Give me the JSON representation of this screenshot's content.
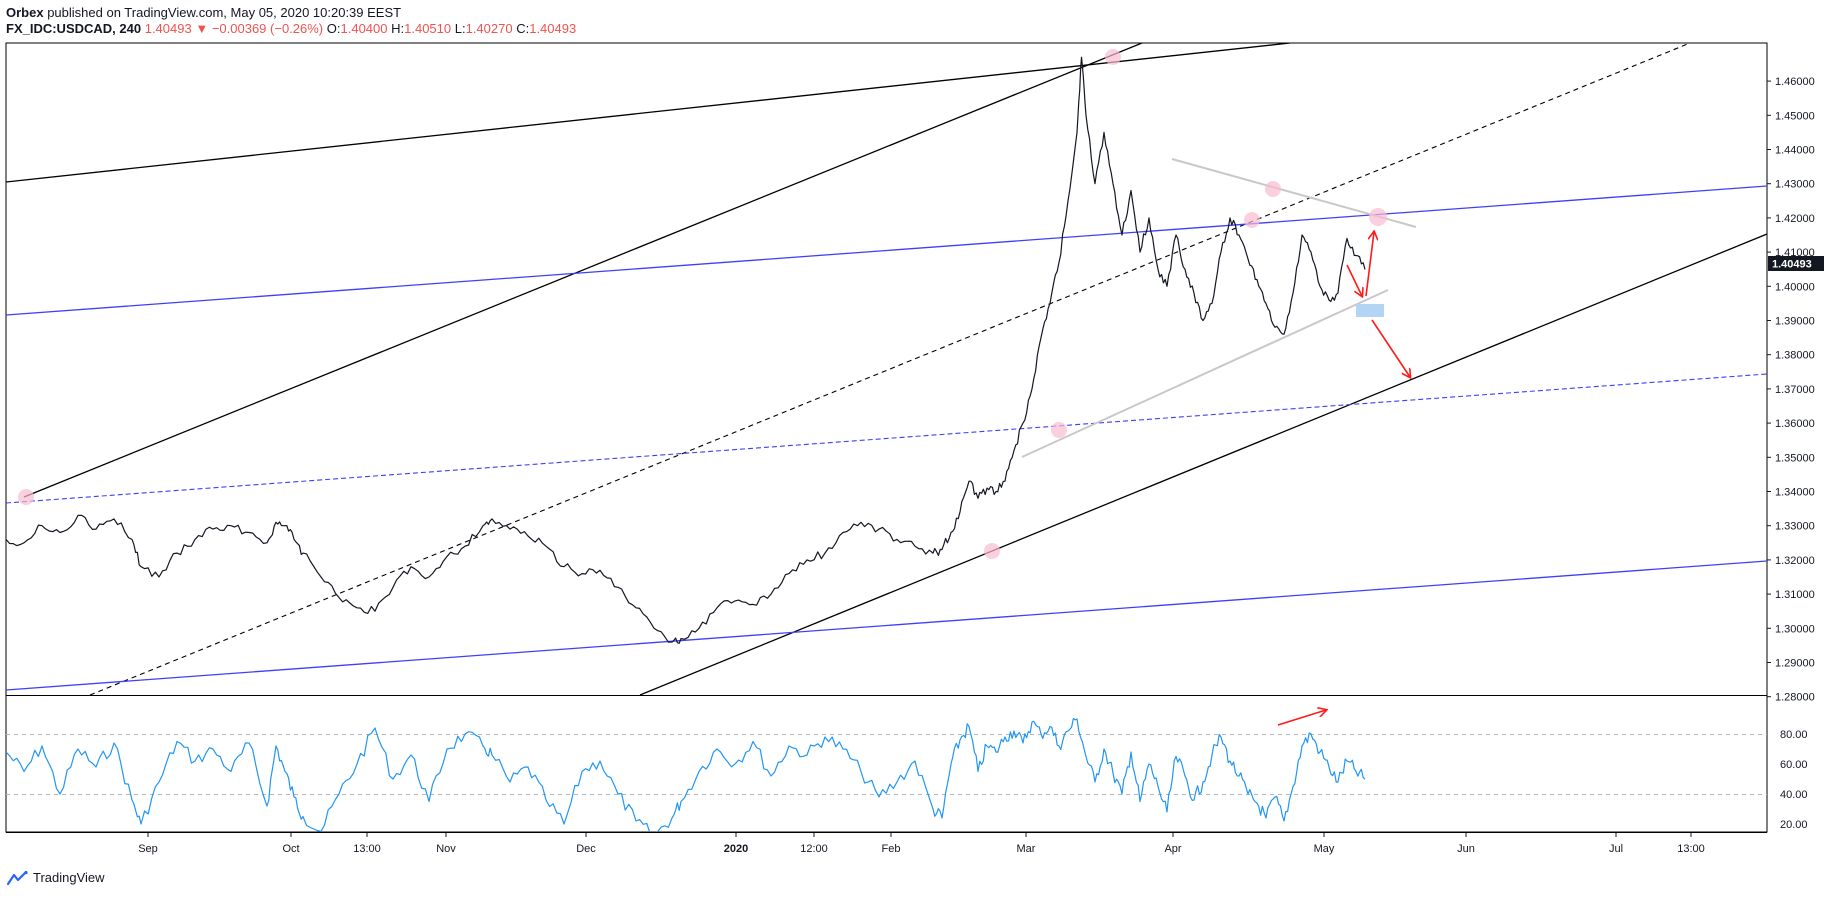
{
  "header": {
    "author": "Orbex",
    "published": "published on TradingView.com, May 05, 2020 10:20:39 EEST",
    "symbol": "FX_IDC:USDCAD, 240",
    "last": "1.40493",
    "change": "▼ −0.00369 (−0.26%)",
    "o_label": "O:",
    "o_value": "1.40400",
    "h_label": "H:",
    "h_value": "1.40510",
    "l_label": "L:",
    "l_value": "1.40270",
    "c_label": "C:",
    "c_value": "1.40493"
  },
  "footer": {
    "brand": "TradingView"
  },
  "colors": {
    "price": "#131722",
    "rsi": "#2196f3",
    "channel_blue": "#3f3ffb",
    "annotation_red": "#ff1a1a",
    "highlight_pink": "#f8bbd0",
    "highlight_box": "#b3d4f5",
    "triangle_grey": "#c8c8c8",
    "price_label_bg": "#131722"
  },
  "chart_data": [
    {
      "type": "line",
      "series": [
        {
          "values": [
            [
              0,
              1.326
            ],
            [
              4,
              1.325
            ],
            [
              8,
              1.33
            ],
            [
              12,
              1.328
            ],
            [
              16,
              1.333
            ],
            [
              20,
              1.329
            ],
            [
              24,
              1.332
            ],
            [
              28,
              1.326
            ],
            [
              30,
              1.318
            ],
            [
              34,
              1.315
            ],
            [
              38,
              1.322
            ],
            [
              42,
              1.326
            ],
            [
              46,
              1.329
            ],
            [
              50,
              1.33
            ],
            [
              54,
              1.328
            ],
            [
              58,
              1.325
            ],
            [
              60,
              1.331
            ],
            [
              62,
              1.33
            ],
            [
              64,
              1.326
            ],
            [
              66,
              1.322
            ],
            [
              70,
              1.315
            ],
            [
              74,
              1.309
            ],
            [
              78,
              1.306
            ],
            [
              82,
              1.305
            ],
            [
              86,
              1.312
            ],
            [
              90,
              1.318
            ],
            [
              94,
              1.315
            ],
            [
              98,
              1.321
            ],
            [
              102,
              1.324
            ],
            [
              106,
              1.33
            ],
            [
              108,
              1.332
            ],
            [
              112,
              1.329
            ],
            [
              116,
              1.327
            ],
            [
              120,
              1.324
            ],
            [
              124,
              1.318
            ],
            [
              128,
              1.316
            ],
            [
              132,
              1.317
            ],
            [
              136,
              1.312
            ],
            [
              140,
              1.306
            ],
            [
              144,
              1.3
            ],
            [
              148,
              1.296
            ],
            [
              150,
              1.297
            ],
            [
              154,
              1.3
            ],
            [
              158,
              1.306
            ],
            [
              162,
              1.308
            ],
            [
              166,
              1.307
            ],
            [
              170,
              1.31
            ],
            [
              174,
              1.316
            ],
            [
              178,
              1.32
            ],
            [
              182,
              1.322
            ],
            [
              186,
              1.328
            ],
            [
              190,
              1.331
            ],
            [
              194,
              1.329
            ],
            [
              198,
              1.326
            ],
            [
              202,
              1.324
            ],
            [
              206,
              1.322
            ],
            [
              208,
              1.323
            ],
            [
              210,
              1.328
            ],
            [
              212,
              1.334
            ],
            [
              214,
              1.343
            ],
            [
              216,
              1.338
            ],
            [
              218,
              1.341
            ],
            [
              220,
              1.34
            ],
            [
              222,
              1.343
            ],
            [
              224,
              1.352
            ],
            [
              226,
              1.36
            ],
            [
              228,
              1.37
            ],
            [
              230,
              1.385
            ],
            [
              232,
              1.395
            ],
            [
              234,
              1.407
            ],
            [
              236,
              1.425
            ],
            [
              238,
              1.445
            ],
            [
              239,
              1.467
            ],
            [
              240,
              1.45
            ],
            [
              242,
              1.43
            ],
            [
              244,
              1.445
            ],
            [
              246,
              1.43
            ],
            [
              248,
              1.415
            ],
            [
              250,
              1.428
            ],
            [
              252,
              1.41
            ],
            [
              254,
              1.42
            ],
            [
              256,
              1.405
            ],
            [
              258,
              1.4
            ],
            [
              260,
              1.415
            ],
            [
              262,
              1.405
            ],
            [
              264,
              1.398
            ],
            [
              266,
              1.39
            ],
            [
              268,
              1.395
            ],
            [
              270,
              1.41
            ],
            [
              272,
              1.42
            ],
            [
              274,
              1.415
            ],
            [
              276,
              1.408
            ],
            [
              278,
              1.402
            ],
            [
              280,
              1.395
            ],
            [
              282,
              1.388
            ],
            [
              284,
              1.386
            ],
            [
              286,
              1.398
            ],
            [
              288,
              1.415
            ],
            [
              290,
              1.41
            ],
            [
              292,
              1.4
            ],
            [
              294,
              1.396
            ],
            [
              296,
              1.398
            ],
            [
              298,
              1.414
            ],
            [
              300,
              1.409
            ],
            [
              302,
              1.4049
            ]
          ]
        }
      ]
    },
    {
      "type": "line",
      "series": [
        {
          "values": [
            [
              0,
              68
            ],
            [
              4,
              55
            ],
            [
              8,
              72
            ],
            [
              12,
              40
            ],
            [
              16,
              70
            ],
            [
              20,
              58
            ],
            [
              24,
              74
            ],
            [
              28,
              36
            ],
            [
              30,
              20
            ],
            [
              34,
              48
            ],
            [
              38,
              75
            ],
            [
              42,
              62
            ],
            [
              46,
              70
            ],
            [
              50,
              55
            ],
            [
              54,
              74
            ],
            [
              58,
              32
            ],
            [
              60,
              72
            ],
            [
              62,
              55
            ],
            [
              64,
              38
            ],
            [
              66,
              25
            ],
            [
              70,
              15
            ],
            [
              74,
              40
            ],
            [
              78,
              60
            ],
            [
              82,
              84
            ],
            [
              86,
              50
            ],
            [
              90,
              66
            ],
            [
              94,
              35
            ],
            [
              98,
              70
            ],
            [
              102,
              80
            ],
            [
              106,
              72
            ],
            [
              108,
              66
            ],
            [
              112,
              48
            ],
            [
              116,
              58
            ],
            [
              120,
              36
            ],
            [
              124,
              20
            ],
            [
              128,
              55
            ],
            [
              132,
              62
            ],
            [
              136,
              40
            ],
            [
              140,
              22
            ],
            [
              144,
              12
            ],
            [
              148,
              24
            ],
            [
              150,
              35
            ],
            [
              154,
              55
            ],
            [
              158,
              70
            ],
            [
              162,
              60
            ],
            [
              166,
              75
            ],
            [
              170,
              52
            ],
            [
              174,
              72
            ],
            [
              178,
              66
            ],
            [
              182,
              78
            ],
            [
              186,
              70
            ],
            [
              190,
              55
            ],
            [
              194,
              38
            ],
            [
              198,
              48
            ],
            [
              202,
              62
            ],
            [
              206,
              30
            ],
            [
              208,
              24
            ],
            [
              210,
              60
            ],
            [
              212,
              76
            ],
            [
              214,
              85
            ],
            [
              216,
              55
            ],
            [
              218,
              72
            ],
            [
              220,
              68
            ],
            [
              222,
              78
            ],
            [
              224,
              82
            ],
            [
              226,
              74
            ],
            [
              228,
              88
            ],
            [
              230,
              80
            ],
            [
              232,
              85
            ],
            [
              234,
              72
            ],
            [
              236,
              82
            ],
            [
              238,
              90
            ],
            [
              240,
              65
            ],
            [
              242,
              48
            ],
            [
              244,
              70
            ],
            [
              246,
              54
            ],
            [
              248,
              40
            ],
            [
              250,
              68
            ],
            [
              252,
              35
            ],
            [
              254,
              60
            ],
            [
              256,
              45
            ],
            [
              258,
              28
            ],
            [
              260,
              65
            ],
            [
              262,
              52
            ],
            [
              264,
              36
            ],
            [
              266,
              48
            ],
            [
              268,
              66
            ],
            [
              270,
              78
            ],
            [
              272,
              62
            ],
            [
              274,
              52
            ],
            [
              276,
              40
            ],
            [
              278,
              34
            ],
            [
              280,
              24
            ],
            [
              282,
              38
            ],
            [
              284,
              22
            ],
            [
              286,
              45
            ],
            [
              288,
              72
            ],
            [
              290,
              80
            ],
            [
              292,
              68
            ],
            [
              294,
              58
            ],
            [
              296,
              48
            ],
            [
              298,
              62
            ],
            [
              300,
              55
            ],
            [
              302,
              50
            ]
          ]
        }
      ]
    }
  ],
  "price_scale": [
    "1.46000",
    "1.45000",
    "1.44000",
    "1.43000",
    "1.42000",
    "1.41000",
    "1.40000",
    "1.39000",
    "1.38000",
    "1.37000",
    "1.36000",
    "1.35000",
    "1.34000",
    "1.33000",
    "1.32000",
    "1.31000",
    "1.30000",
    "1.29000",
    "1.28000"
  ],
  "rsi_scale": [
    "80.00",
    "60.00",
    "40.00",
    "20.00"
  ],
  "time_scale": [
    "Sep",
    "Oct",
    "13:00",
    "Nov",
    "Dec",
    "2020",
    "12:00",
    "Feb",
    "Mar",
    "Apr",
    "May",
    "Jun",
    "Jul",
    "13:00"
  ],
  "last_price_label": "1.40493"
}
